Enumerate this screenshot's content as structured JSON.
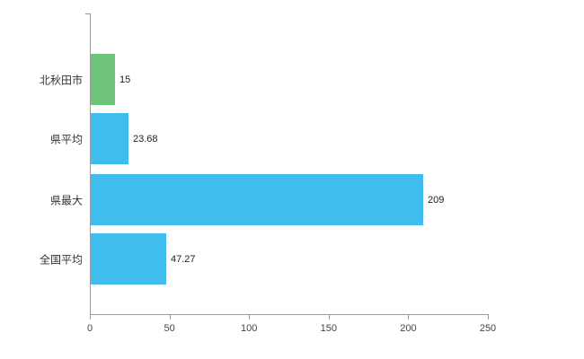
{
  "chart_data": {
    "type": "bar",
    "orientation": "horizontal",
    "title": "",
    "xlabel": "",
    "ylabel": "",
    "categories": [
      "北秋田市",
      "県平均",
      "県最大",
      "全国平均"
    ],
    "values": [
      15,
      23.68,
      209,
      47.27
    ],
    "value_labels": [
      "15",
      "23.68",
      "209",
      "47.27"
    ],
    "bar_colors": [
      "#6ec47a",
      "#3fbdef",
      "#3fbdef",
      "#3fbdef"
    ],
    "xlim": [
      0,
      250
    ],
    "x_ticks": [
      0,
      50,
      100,
      150,
      200,
      250
    ],
    "x_tick_labels": [
      "0",
      "50",
      "100",
      "150",
      "200",
      "250"
    ],
    "grid": false,
    "legend_position": "none"
  },
  "style": {
    "axis_color": "#9a9a9a",
    "label_color": "#333333",
    "tick_label_color": "#444444",
    "background": "#ffffff"
  }
}
